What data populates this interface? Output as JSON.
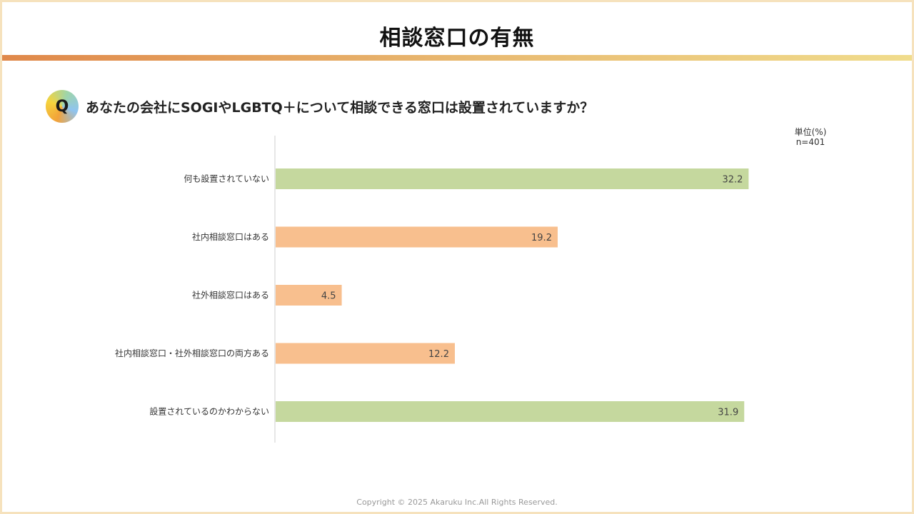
{
  "header": {
    "title": "相談窓口の有無"
  },
  "question": {
    "badge": "Q",
    "text": "あなたの会社にSOGIやLGBTQ＋について相談できる窓口は設置されていますか？"
  },
  "unit": {
    "label": "単位(%)",
    "n": "n=401"
  },
  "colors": {
    "accent_green": "#c5d89e",
    "accent_orange": "#f8bf8e"
  },
  "chart_data": {
    "type": "bar",
    "orientation": "horizontal",
    "categories": [
      "何も設置されていない",
      "社内相談窓口はある",
      "社外相談窓口はある",
      "社内相談窓口・社外相談窓口の両方ある",
      "設置されているのかわからない"
    ],
    "values": [
      32.2,
      19.2,
      4.5,
      12.2,
      31.9
    ],
    "value_labels": [
      "32.2",
      "19.2",
      "4.5",
      "12.2",
      "31.9"
    ],
    "bar_colors": [
      "#c5d89e",
      "#f8bf8e",
      "#f8bf8e",
      "#f8bf8e",
      "#c5d89e"
    ],
    "xlim": [
      0,
      35
    ],
    "unit": "%"
  },
  "footer": {
    "copyright": "Copyright © 2025 Akaruku Inc.All Rights Reserved."
  }
}
